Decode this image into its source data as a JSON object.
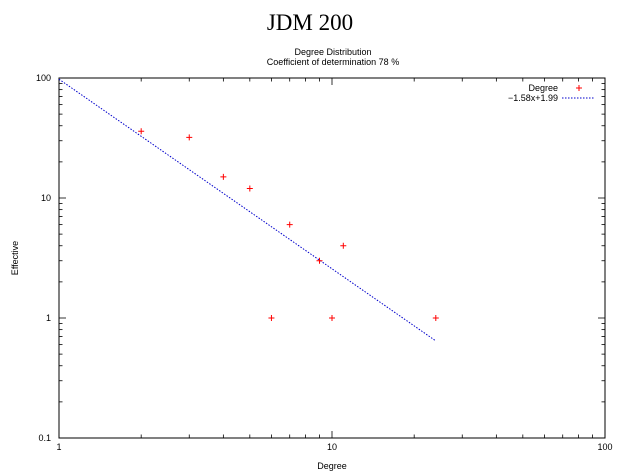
{
  "page": {
    "title": "JDM 200"
  },
  "chart_data": {
    "type": "scatter",
    "title": "Degree Distribution",
    "subtitle": "Coefficient of determination 78 %",
    "xlabel": "Degree",
    "ylabel": "Effective",
    "x_scale": "log",
    "y_scale": "log",
    "xlim": [
      1,
      100
    ],
    "ylim": [
      0.1,
      100
    ],
    "x_ticks": [
      1,
      10,
      100
    ],
    "y_ticks": [
      0.1,
      1,
      10,
      100
    ],
    "x_tick_labels": [
      "1",
      "10",
      "100"
    ],
    "y_tick_labels": [
      "0.1",
      "1",
      "10",
      "100"
    ],
    "grid": false,
    "legend_position": "top-right",
    "series": [
      {
        "name": "Degree",
        "kind": "points",
        "marker": "plus",
        "color": "#ff0000",
        "points": [
          {
            "x": 2,
            "y": 36
          },
          {
            "x": 3,
            "y": 32
          },
          {
            "x": 4,
            "y": 15
          },
          {
            "x": 5,
            "y": 12
          },
          {
            "x": 6,
            "y": 1
          },
          {
            "x": 7,
            "y": 6
          },
          {
            "x": 9,
            "y": 3
          },
          {
            "x": 10,
            "y": 1
          },
          {
            "x": 11,
            "y": 4
          },
          {
            "x": 24,
            "y": 1
          }
        ]
      },
      {
        "name": "−1.58x+1.99",
        "kind": "fit",
        "style": "dotted",
        "color": "#0000cc",
        "x_range": [
          1,
          24
        ],
        "slope": -1.58,
        "intercept": 1.99
      }
    ]
  }
}
